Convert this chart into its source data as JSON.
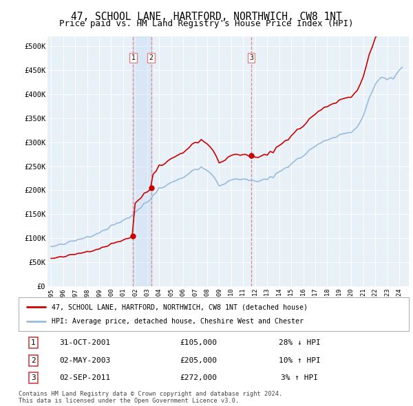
{
  "title": "47, SCHOOL LANE, HARTFORD, NORTHWICH, CW8 1NT",
  "subtitle": "Price paid vs. HM Land Registry's House Price Index (HPI)",
  "title_fontsize": 10.5,
  "subtitle_fontsize": 9,
  "ylabel_ticks": [
    "£0",
    "£50K",
    "£100K",
    "£150K",
    "£200K",
    "£250K",
    "£300K",
    "£350K",
    "£400K",
    "£450K",
    "£500K"
  ],
  "ytick_vals": [
    0,
    50000,
    100000,
    150000,
    200000,
    250000,
    300000,
    350000,
    400000,
    450000,
    500000
  ],
  "ylim": [
    0,
    520000
  ],
  "red_line_color": "#cc0000",
  "blue_line_color": "#99bbdd",
  "vline_color": "#dd8888",
  "background_color": "#ffffff",
  "plot_bg_color": "#e8f0f8",
  "grid_color": "#ffffff",
  "legend_line1": "47, SCHOOL LANE, HARTFORD, NORTHWICH, CW8 1NT (detached house)",
  "legend_line2": "HPI: Average price, detached house, Cheshire West and Chester",
  "sale1_date": "31-OCT-2001",
  "sale1_price": 105000,
  "sale1_hpi": "28% ↓ HPI",
  "sale2_date": "02-MAY-2003",
  "sale2_price": 205000,
  "sale2_hpi": "10% ↑ HPI",
  "sale3_date": "02-SEP-2011",
  "sale3_price": 272000,
  "sale3_hpi": "3% ↑ HPI",
  "copyright_text": "Contains HM Land Registry data © Crown copyright and database right 2024.\nThis data is licensed under the Open Government Licence v3.0.",
  "sale1_x": 2001.83,
  "sale2_x": 2003.33,
  "sale3_x": 2011.67
}
